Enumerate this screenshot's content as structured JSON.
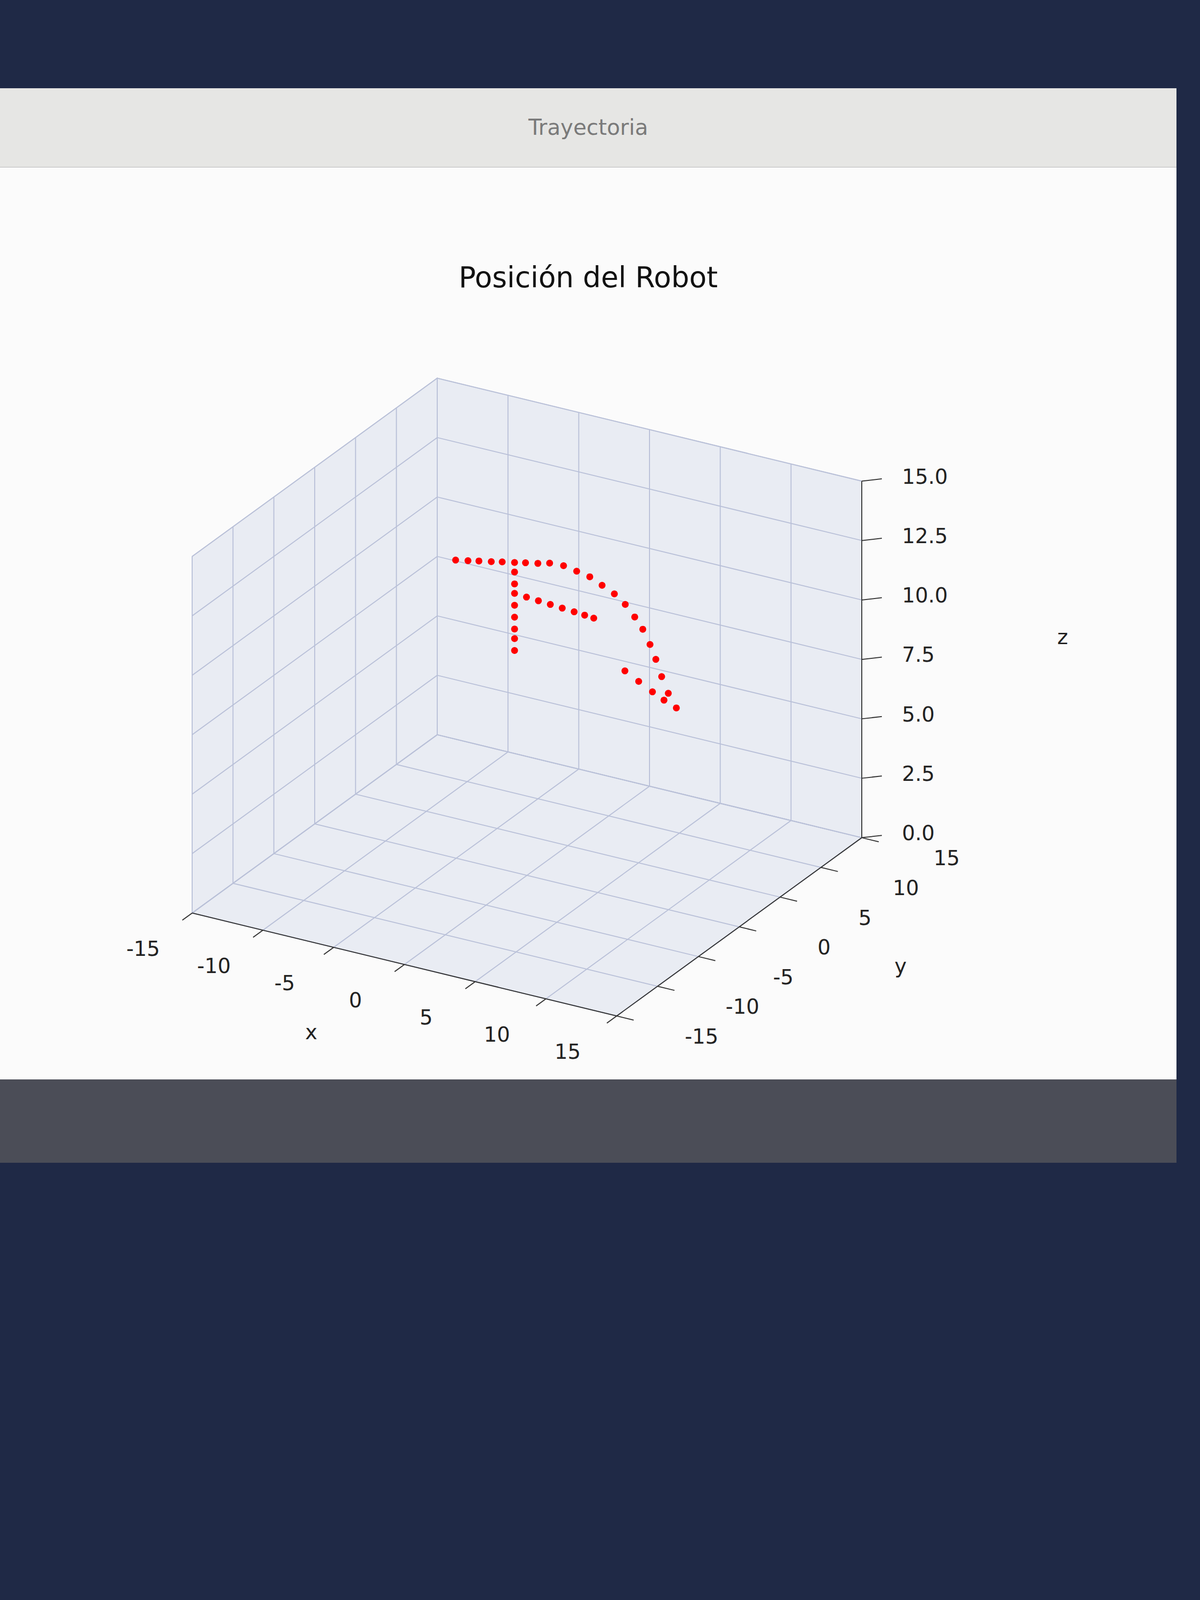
{
  "window_title": "Trayectoria",
  "chart_data": {
    "type": "scatter3d",
    "title": "Posición del Robot",
    "x_label": "x",
    "y_label": "y",
    "z_label": "z",
    "xlim": [
      -15,
      15
    ],
    "xticks": [
      -15,
      -10,
      -5,
      0,
      5,
      10,
      15
    ],
    "ylim": [
      -15,
      15
    ],
    "yticks": [
      -15,
      -10,
      -5,
      0,
      5,
      10,
      15
    ],
    "zlim": [
      0,
      15
    ],
    "zticks": [
      {
        "value": 0,
        "label": "0.0"
      },
      2.5,
      {
        "value": 5,
        "label": "5.0"
      },
      7.5,
      {
        "value": 10,
        "label": "10.0"
      },
      12.5,
      {
        "value": 15,
        "label": "15.0"
      }
    ],
    "grid": true,
    "color": "#ff0000",
    "marker": "o",
    "x": [
      -5.1,
      -4.4,
      -3.8,
      -3.1,
      -2.5,
      -1.8,
      -1.2,
      -0.5,
      0.1,
      -1.8,
      -1.8,
      -1.8,
      -1.8,
      -1.8,
      -1.8,
      -1.8,
      -1.8,
      -0.9,
      0.0,
      0.9,
      1.8,
      2.7,
      3.5,
      4.2,
      1.2,
      2.3,
      3.4,
      4.5,
      5.6,
      6.6,
      7.5,
      8.3,
      9.1,
      9.8,
      10.5,
      11.2,
      12.0,
      9.0,
      9.8,
      10.6,
      11.3
    ],
    "y": [
      0.1,
      0.4,
      0.7,
      1.0,
      1.3,
      1.6,
      1.9,
      2.2,
      2.6,
      1.6,
      1.6,
      1.6,
      1.6,
      1.6,
      1.6,
      1.6,
      1.6,
      1.5,
      1.4,
      1.3,
      1.2,
      1.1,
      1.0,
      0.9,
      2.4,
      2.1,
      1.8,
      1.4,
      1.0,
      0.6,
      0.2,
      -0.2,
      -0.7,
      -1.2,
      -1.7,
      -2.1,
      -2.5,
      -3.6,
      -3.3,
      -3.0,
      -2.8
    ],
    "z": [
      12.5,
      12.5,
      12.5,
      12.5,
      12.5,
      12.5,
      12.5,
      12.5,
      12.5,
      12.1,
      11.6,
      11.2,
      10.7,
      10.2,
      9.7,
      9.3,
      8.8,
      11.2,
      11.2,
      11.2,
      11.2,
      11.2,
      11.2,
      11.2,
      12.6,
      12.6,
      12.6,
      12.5,
      12.4,
      12.2,
      11.9,
      11.6,
      11.2,
      10.8,
      10.3,
      9.8,
      9.4,
      10.8,
      10.4,
      10.0,
      9.7
    ]
  }
}
